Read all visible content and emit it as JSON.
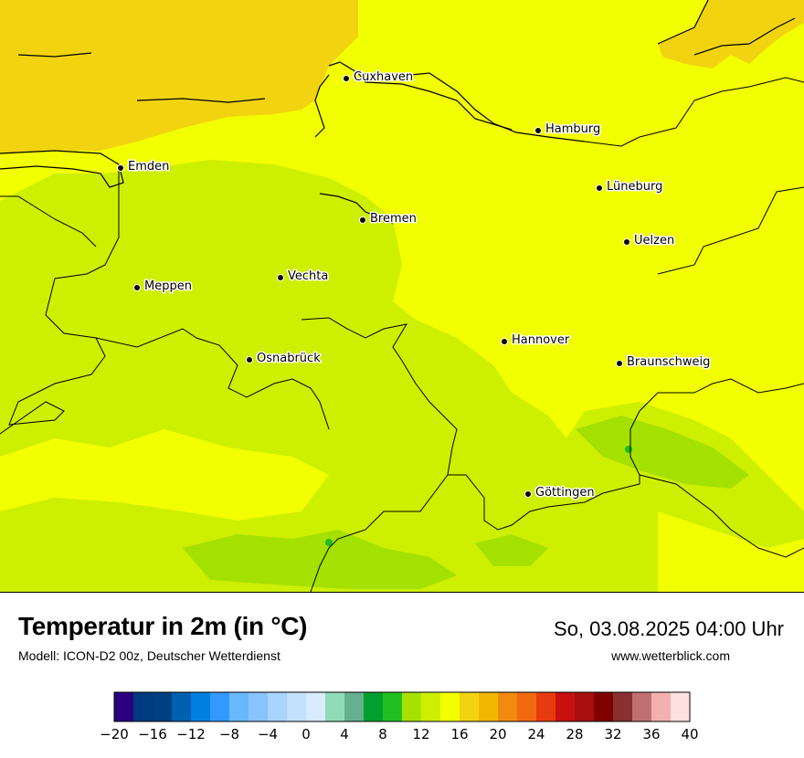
{
  "map": {
    "cities": [
      {
        "name": "Cuxhaven"
      },
      {
        "name": "Hamburg"
      },
      {
        "name": "Emden"
      },
      {
        "name": "Lüneburg"
      },
      {
        "name": "Bremen"
      },
      {
        "name": "Uelzen"
      },
      {
        "name": "Vechta"
      },
      {
        "name": "Meppen"
      },
      {
        "name": "Hannover"
      },
      {
        "name": "Osnabrück"
      },
      {
        "name": "Braunschweig"
      },
      {
        "name": "Göttingen"
      }
    ],
    "colors": {
      "sea": "#f2d310",
      "land_16_18": "#f2ff00",
      "land_14_16": "#cdef00",
      "land_12_14": "#a4e000",
      "land_10_12": "#22bb22"
    }
  },
  "footer": {
    "title": "Temperatur in 2m (in °C)",
    "model": "Modell: ICON-D2 00z, Deutscher Wetterdienst",
    "datetime": "So, 03.08.2025 04:00 Uhr",
    "website": "www.wetterblick.com"
  },
  "colorbar": {
    "min": -20,
    "max": 40,
    "step": 2,
    "tick_labels": [
      "−20",
      "−16",
      "−12",
      "−8",
      "−4",
      "0",
      "4",
      "8",
      "12",
      "16",
      "20",
      "24",
      "28",
      "32",
      "36",
      "40"
    ],
    "colors": [
      "#2a0080",
      "#003a80",
      "#004080",
      "#0060b0",
      "#0080e0",
      "#3399ff",
      "#66b8ff",
      "#88c4ff",
      "#a8d4ff",
      "#c4e0ff",
      "#d8ecff",
      "#90dcb8",
      "#66b090",
      "#00a030",
      "#20c020",
      "#a8e000",
      "#cdef00",
      "#f2ff00",
      "#f2d310",
      "#f2b800",
      "#f28a10",
      "#f26a10",
      "#e83a10",
      "#c81010",
      "#a81010",
      "#800000",
      "#883030",
      "#c07070",
      "#f4b0b0",
      "#ffe0e0"
    ]
  }
}
